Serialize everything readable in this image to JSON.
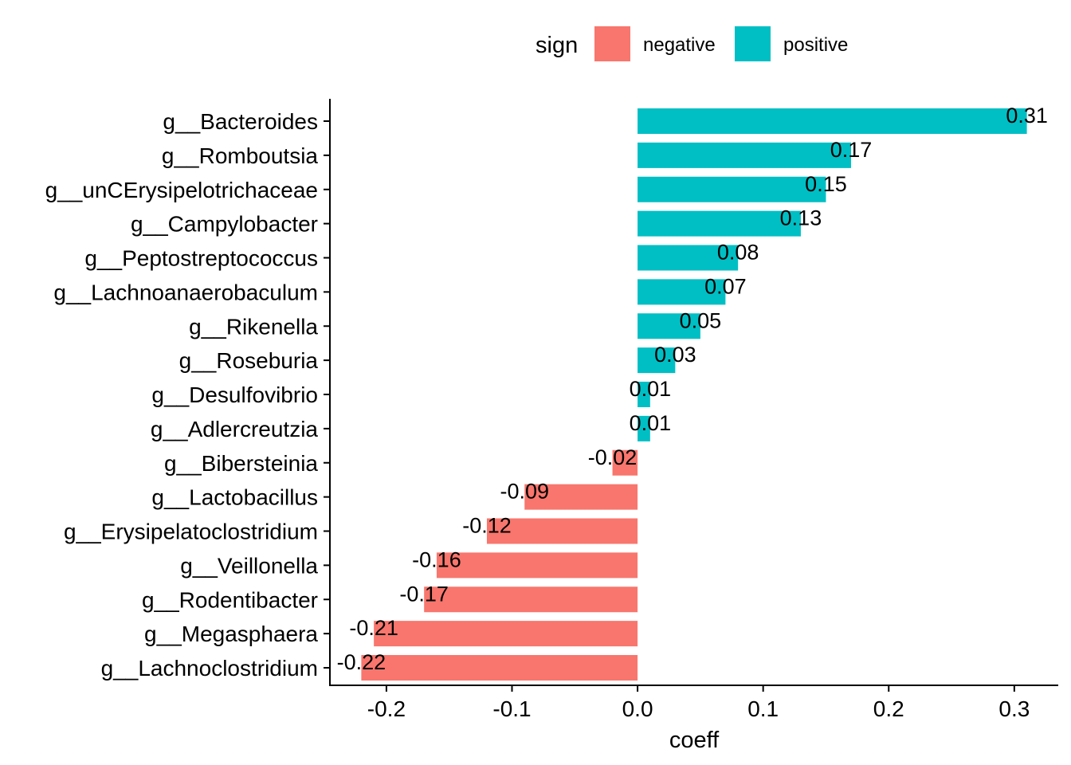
{
  "chart_data": {
    "type": "bar",
    "orientation": "horizontal",
    "xlabel": "coeff",
    "ylabel": "",
    "xlim": [
      -0.245,
      0.335
    ],
    "xticks": [
      -0.2,
      -0.1,
      0.0,
      0.1,
      0.2,
      0.3
    ],
    "xtick_labels": [
      "-0.2",
      "-0.1",
      "0.0",
      "0.1",
      "0.2",
      "0.3"
    ],
    "grid": false,
    "legend": {
      "title": "sign",
      "position": "top",
      "entries": [
        {
          "label": "negative",
          "color": "#F8766D"
        },
        {
          "label": "positive",
          "color": "#00BFC4"
        }
      ]
    },
    "categories": [
      "g__Bacteroides",
      "g__Romboutsia",
      "g__unCErysipelotrichaceae",
      "g__Campylobacter",
      "g__Peptostreptococcus",
      "g__Lachnoanaerobaculum",
      "g__Rikenella",
      "g__Roseburia",
      "g__Desulfovibrio",
      "g__Adlercreutzia",
      "g__Bibersteinia",
      "g__Lactobacillus",
      "g__Erysipelatoclostridium",
      "g__Veillonella",
      "g__Rodentibacter",
      "g__Megasphaera",
      "g__Lachnoclostridium"
    ],
    "values": [
      0.31,
      0.17,
      0.15,
      0.13,
      0.08,
      0.07,
      0.05,
      0.03,
      0.01,
      0.01,
      -0.02,
      -0.09,
      -0.12,
      -0.16,
      -0.17,
      -0.21,
      -0.22
    ],
    "value_labels": [
      "0.31",
      "0.17",
      "0.15",
      "0.13",
      "0.08",
      "0.07",
      "0.05",
      "0.03",
      "0.01",
      "0.01",
      "-0.02",
      "-0.09",
      "-0.12",
      "-0.16",
      "-0.17",
      "-0.21",
      "-0.22"
    ],
    "signs": [
      "positive",
      "positive",
      "positive",
      "positive",
      "positive",
      "positive",
      "positive",
      "positive",
      "positive",
      "positive",
      "negative",
      "negative",
      "negative",
      "negative",
      "negative",
      "negative",
      "negative"
    ]
  }
}
